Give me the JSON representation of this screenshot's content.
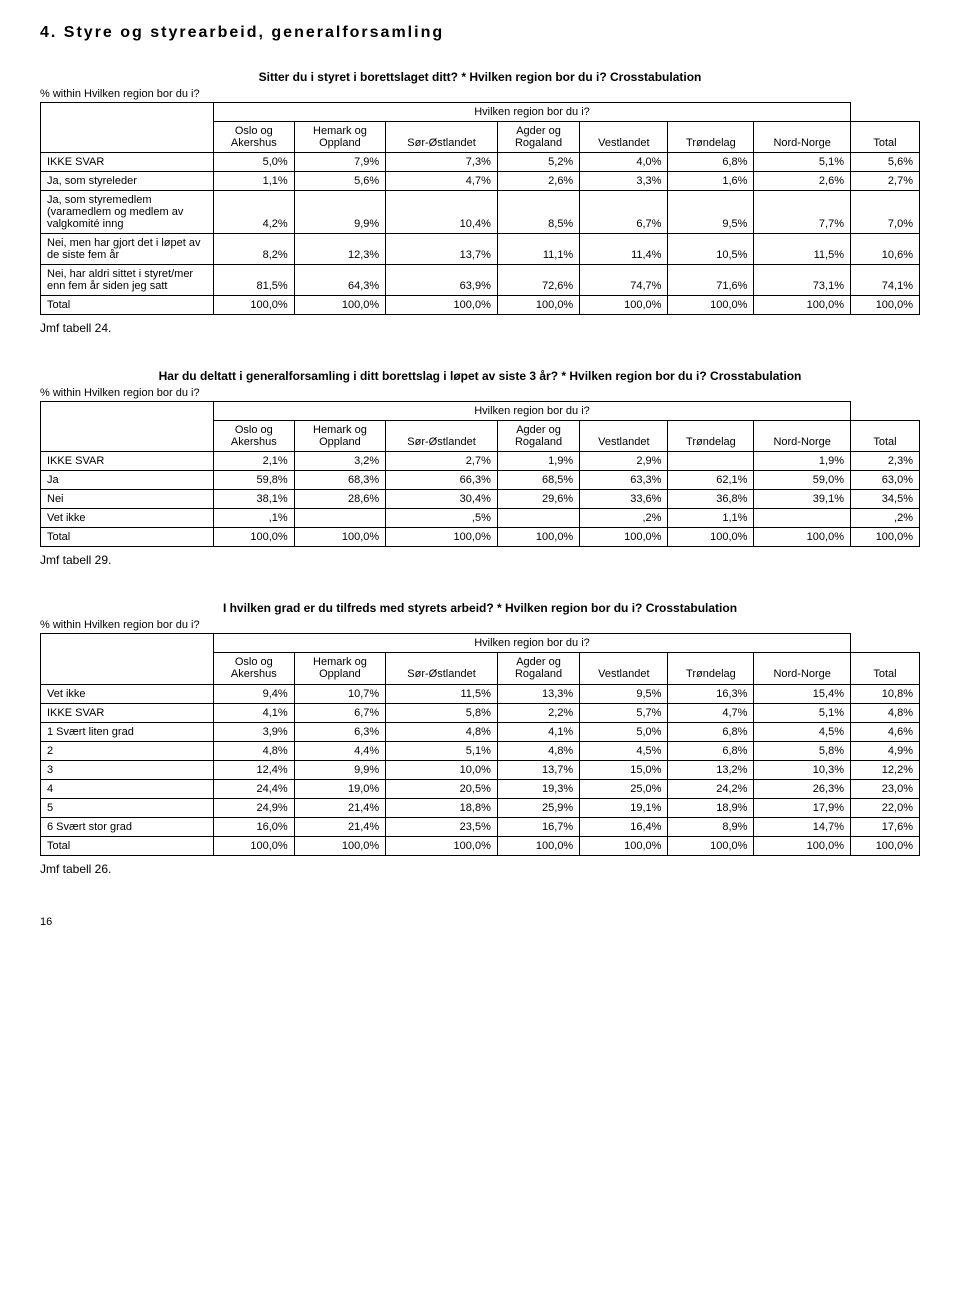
{
  "section_heading": "4. Styre og styrearbeid, generalforsamling",
  "tables": {
    "t1": {
      "title": "Sitter du i styret i borettslaget ditt? * Hvilken region bor du i? Crosstabulation",
      "note": "% within Hvilken region bor du i?",
      "group_header": "Hvilken region bor du i?",
      "columns": [
        {
          "l1": "Oslo og",
          "l2": "Akershus"
        },
        {
          "l1": "Hemark og",
          "l2": "Oppland"
        },
        {
          "l1": "",
          "l2": "Sør-Østlandet"
        },
        {
          "l1": "Agder og",
          "l2": "Rogaland"
        },
        {
          "l1": "",
          "l2": "Vestlandet"
        },
        {
          "l1": "",
          "l2": "Trøndelag"
        },
        {
          "l1": "",
          "l2": "Nord-Norge"
        },
        {
          "l1": "",
          "l2": "Total"
        }
      ],
      "rows": [
        {
          "label": "IKKE SVAR",
          "cells": [
            "5,0%",
            "7,9%",
            "7,3%",
            "5,2%",
            "4,0%",
            "6,8%",
            "5,1%",
            "5,6%"
          ]
        },
        {
          "label": "Ja, som styreleder",
          "cells": [
            "1,1%",
            "5,6%",
            "4,7%",
            "2,6%",
            "3,3%",
            "1,6%",
            "2,6%",
            "2,7%"
          ]
        },
        {
          "label": "Ja, som styremedlem (varamedlem og medlem av valgkomité inng",
          "cells": [
            "4,2%",
            "9,9%",
            "10,4%",
            "8,5%",
            "6,7%",
            "9,5%",
            "7,7%",
            "7,0%"
          ]
        },
        {
          "label": "Nei, men har gjort det i løpet av de siste fem år",
          "cells": [
            "8,2%",
            "12,3%",
            "13,7%",
            "11,1%",
            "11,4%",
            "10,5%",
            "11,5%",
            "10,6%"
          ]
        },
        {
          "label": "Nei, har aldri sittet i styret/mer enn fem år siden jeg satt",
          "cells": [
            "81,5%",
            "64,3%",
            "63,9%",
            "72,6%",
            "74,7%",
            "71,6%",
            "73,1%",
            "74,1%"
          ]
        },
        {
          "label": "Total",
          "cells": [
            "100,0%",
            "100,0%",
            "100,0%",
            "100,0%",
            "100,0%",
            "100,0%",
            "100,0%",
            "100,0%"
          ]
        }
      ],
      "jmf": "Jmf tabell 24."
    },
    "t2": {
      "title": "Har du deltatt i generalforsamling i ditt borettslag i løpet av siste 3 år? * Hvilken region bor du i? Crosstabulation",
      "note": "% within Hvilken region bor du i?",
      "group_header": "Hvilken region bor du i?",
      "columns": [
        {
          "l1": "Oslo og",
          "l2": "Akershus"
        },
        {
          "l1": "Hemark og",
          "l2": "Oppland"
        },
        {
          "l1": "",
          "l2": "Sør-Østlandet"
        },
        {
          "l1": "Agder og",
          "l2": "Rogaland"
        },
        {
          "l1": "",
          "l2": "Vestlandet"
        },
        {
          "l1": "",
          "l2": "Trøndelag"
        },
        {
          "l1": "",
          "l2": "Nord-Norge"
        },
        {
          "l1": "",
          "l2": "Total"
        }
      ],
      "rows": [
        {
          "label": "IKKE SVAR",
          "cells": [
            "2,1%",
            "3,2%",
            "2,7%",
            "1,9%",
            "2,9%",
            "",
            "1,9%",
            "2,3%"
          ]
        },
        {
          "label": "Ja",
          "cells": [
            "59,8%",
            "68,3%",
            "66,3%",
            "68,5%",
            "63,3%",
            "62,1%",
            "59,0%",
            "63,0%"
          ]
        },
        {
          "label": "Nei",
          "cells": [
            "38,1%",
            "28,6%",
            "30,4%",
            "29,6%",
            "33,6%",
            "36,8%",
            "39,1%",
            "34,5%"
          ]
        },
        {
          "label": "Vet ikke",
          "cells": [
            ",1%",
            "",
            ",5%",
            "",
            ",2%",
            "1,1%",
            "",
            ",2%"
          ]
        },
        {
          "label": "Total",
          "cells": [
            "100,0%",
            "100,0%",
            "100,0%",
            "100,0%",
            "100,0%",
            "100,0%",
            "100,0%",
            "100,0%"
          ]
        }
      ],
      "jmf": "Jmf tabell 29."
    },
    "t3": {
      "title": "I hvilken grad er du tilfreds med styrets arbeid? * Hvilken region bor du i? Crosstabulation",
      "note": "% within Hvilken region bor du i?",
      "group_header": "Hvilken region bor du i?",
      "columns": [
        {
          "l1": "Oslo og",
          "l2": "Akershus"
        },
        {
          "l1": "Hemark og",
          "l2": "Oppland"
        },
        {
          "l1": "",
          "l2": "Sør-Østlandet"
        },
        {
          "l1": "Agder og",
          "l2": "Rogaland"
        },
        {
          "l1": "",
          "l2": "Vestlandet"
        },
        {
          "l1": "",
          "l2": "Trøndelag"
        },
        {
          "l1": "",
          "l2": "Nord-Norge"
        },
        {
          "l1": "",
          "l2": "Total"
        }
      ],
      "rows": [
        {
          "label": "Vet ikke",
          "cells": [
            "9,4%",
            "10,7%",
            "11,5%",
            "13,3%",
            "9,5%",
            "16,3%",
            "15,4%",
            "10,8%"
          ]
        },
        {
          "label": "IKKE SVAR",
          "cells": [
            "4,1%",
            "6,7%",
            "5,8%",
            "2,2%",
            "5,7%",
            "4,7%",
            "5,1%",
            "4,8%"
          ]
        },
        {
          "label": "1 Svært liten grad",
          "cells": [
            "3,9%",
            "6,3%",
            "4,8%",
            "4,1%",
            "5,0%",
            "6,8%",
            "4,5%",
            "4,6%"
          ]
        },
        {
          "label": "2",
          "cells": [
            "4,8%",
            "4,4%",
            "5,1%",
            "4,8%",
            "4,5%",
            "6,8%",
            "5,8%",
            "4,9%"
          ]
        },
        {
          "label": "3",
          "cells": [
            "12,4%",
            "9,9%",
            "10,0%",
            "13,7%",
            "15,0%",
            "13,2%",
            "10,3%",
            "12,2%"
          ]
        },
        {
          "label": "4",
          "cells": [
            "24,4%",
            "19,0%",
            "20,5%",
            "19,3%",
            "25,0%",
            "24,2%",
            "26,3%",
            "23,0%"
          ]
        },
        {
          "label": "5",
          "cells": [
            "24,9%",
            "21,4%",
            "18,8%",
            "25,9%",
            "19,1%",
            "18,9%",
            "17,9%",
            "22,0%"
          ]
        },
        {
          "label": "6 Svært stor grad",
          "cells": [
            "16,0%",
            "21,4%",
            "23,5%",
            "16,7%",
            "16,4%",
            "8,9%",
            "14,7%",
            "17,6%"
          ]
        },
        {
          "label": "Total",
          "cells": [
            "100,0%",
            "100,0%",
            "100,0%",
            "100,0%",
            "100,0%",
            "100,0%",
            "100,0%",
            "100,0%"
          ]
        }
      ],
      "jmf": "Jmf tabell 26."
    }
  },
  "page_number": "16"
}
